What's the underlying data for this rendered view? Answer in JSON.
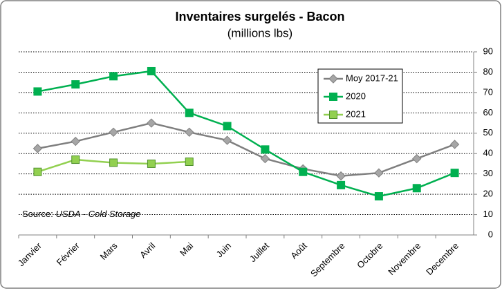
{
  "chart_data": {
    "type": "line",
    "title": "Inventaires surgelés - Bacon",
    "subtitle": "(millions lbs)",
    "source_label": "Source:",
    "source": "USDA - Cold Storage",
    "categories": [
      "Janvier",
      "Février",
      "Mars",
      "Avril",
      "Mai",
      "Juin",
      "Juillet",
      "Août",
      "Septembre",
      "Octobre",
      "Novembre",
      "Decembre"
    ],
    "series": [
      {
        "name": "Moy 2017-21",
        "color": "#7f7f7f",
        "marker": "diamond",
        "marker_color": "#a6a6a6",
        "values": [
          42.5,
          46,
          50.5,
          55,
          50.5,
          46.5,
          37.5,
          32.5,
          29,
          30.5,
          37.5,
          44.5
        ]
      },
      {
        "name": "2020",
        "color": "#00b050",
        "marker": "square",
        "marker_color": "#00b050",
        "values": [
          70.5,
          74,
          78,
          80.5,
          60,
          53.5,
          42,
          31,
          24.5,
          19,
          23,
          30.5
        ]
      },
      {
        "name": "2021",
        "color": "#92d050",
        "marker": "square",
        "marker_color": "#92d050",
        "values": [
          31,
          37,
          35.5,
          35,
          36,
          null,
          null,
          null,
          null,
          null,
          null,
          null
        ]
      }
    ],
    "ylim": [
      0,
      90
    ],
    "yticks": [
      0,
      10,
      20,
      30,
      40,
      50,
      60,
      70,
      80,
      90
    ],
    "grid": true,
    "y_axis_side": "right",
    "legend": "upper right"
  }
}
